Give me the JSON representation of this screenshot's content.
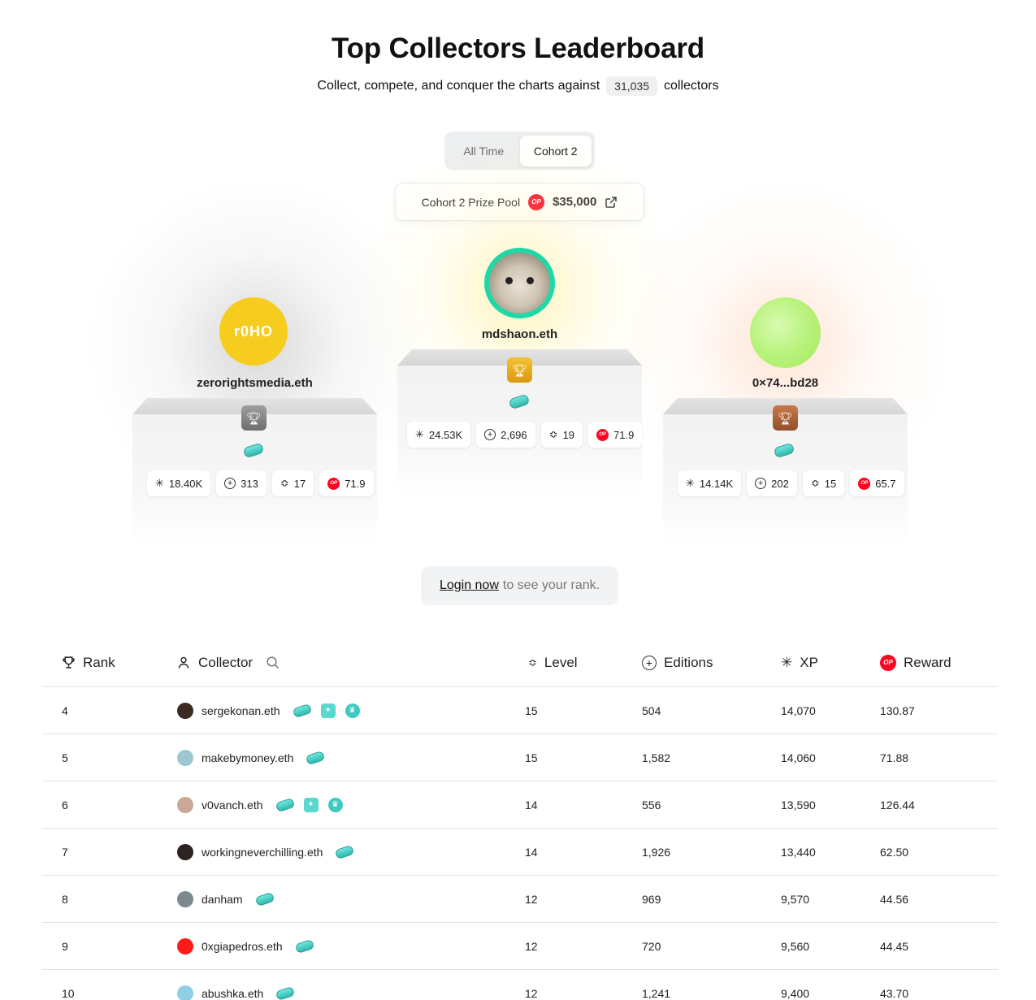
{
  "header": {
    "title": "Top Collectors Leaderboard",
    "subtitle_pre": "Collect, compete, and conquer the charts against",
    "collector_count": "31,035",
    "subtitle_post": "collectors"
  },
  "tabs": [
    {
      "label": "All Time",
      "active": false
    },
    {
      "label": "Cohort 2",
      "active": true
    }
  ],
  "prize_pool": {
    "label": "Cohort 2 Prize Pool",
    "token": "OP",
    "amount": "$35,000"
  },
  "podium": {
    "first": {
      "name": "mdshaon.eth",
      "xp": "24.53K",
      "editions": "2,696",
      "level": "19",
      "reward": "71.9"
    },
    "second": {
      "name": "zerorightsmedia.eth",
      "avatar_text": "r0HO",
      "xp": "18.40K",
      "editions": "313",
      "level": "17",
      "reward": "71.9"
    },
    "third": {
      "name": "0×74...bd28",
      "xp": "14.14K",
      "editions": "202",
      "level": "15",
      "reward": "65.7"
    }
  },
  "login": {
    "link_label": "Login now",
    "rest": "to see your rank."
  },
  "table": {
    "headers": {
      "rank": "Rank",
      "collector": "Collector",
      "level": "Level",
      "editions": "Editions",
      "xp": "XP",
      "reward": "Reward"
    },
    "rows": [
      {
        "rank": "4",
        "name": "sergekonan.eth",
        "level": "15",
        "editions": "504",
        "xp": "14,070",
        "reward": "130.87",
        "avatar_color": "#3a2a22"
      },
      {
        "rank": "5",
        "name": "makebymoney.eth",
        "level": "15",
        "editions": "1,582",
        "xp": "14,060",
        "reward": "71.88",
        "avatar_color": "#9fc7cf"
      },
      {
        "rank": "6",
        "name": "v0vanch.eth",
        "level": "14",
        "editions": "556",
        "xp": "13,590",
        "reward": "126.44",
        "avatar_color": "#c9a896"
      },
      {
        "rank": "7",
        "name": "workingneverchilling.eth",
        "level": "14",
        "editions": "1,926",
        "xp": "13,440",
        "reward": "62.50",
        "avatar_color": "#2b2320"
      },
      {
        "rank": "8",
        "name": "danham",
        "level": "12",
        "editions": "969",
        "xp": "9,570",
        "reward": "44.56",
        "avatar_color": "#7a8a8f"
      },
      {
        "rank": "9",
        "name": "0xgiapedros.eth",
        "level": "12",
        "editions": "720",
        "xp": "9,560",
        "reward": "44.45",
        "avatar_color": "#ff1a1a"
      },
      {
        "rank": "10",
        "name": "abushka.eth",
        "level": "12",
        "editions": "1,241",
        "xp": "9,400",
        "reward": "43.70",
        "avatar_color": "#8fd0e6"
      }
    ]
  },
  "colors": {
    "op_red": "#ff0420",
    "gold": "#f4c234",
    "silver": "#9e9e9e",
    "bronze": "#c7784a",
    "badge_teal": "#2fb7ad"
  },
  "icons": {
    "xp": "sparkle-icon",
    "editions": "plus-circle-icon",
    "level": "layers-icon",
    "rank": "trophy-icon",
    "collector": "user-icon",
    "search": "search-icon",
    "external": "external-link-icon"
  }
}
